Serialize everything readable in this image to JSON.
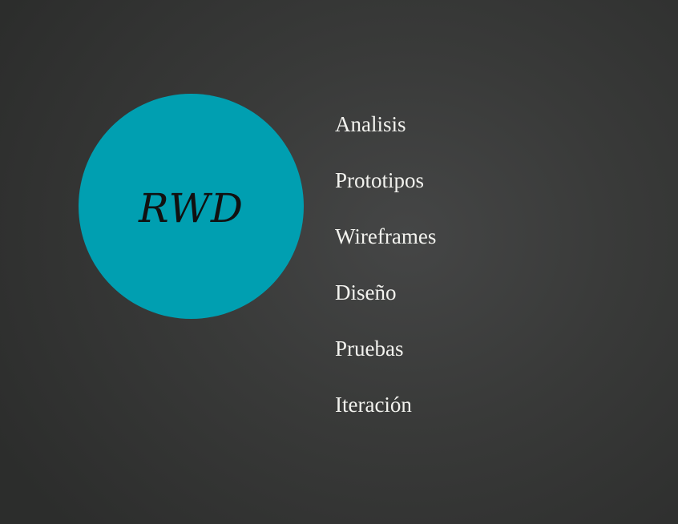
{
  "slide": {
    "circle": {
      "label": "RWD",
      "color": "#009fb1"
    },
    "steps": [
      "Analisis",
      "Prototipos",
      "Wireframes",
      "Diseño",
      "Pruebas",
      "Iteración"
    ]
  }
}
